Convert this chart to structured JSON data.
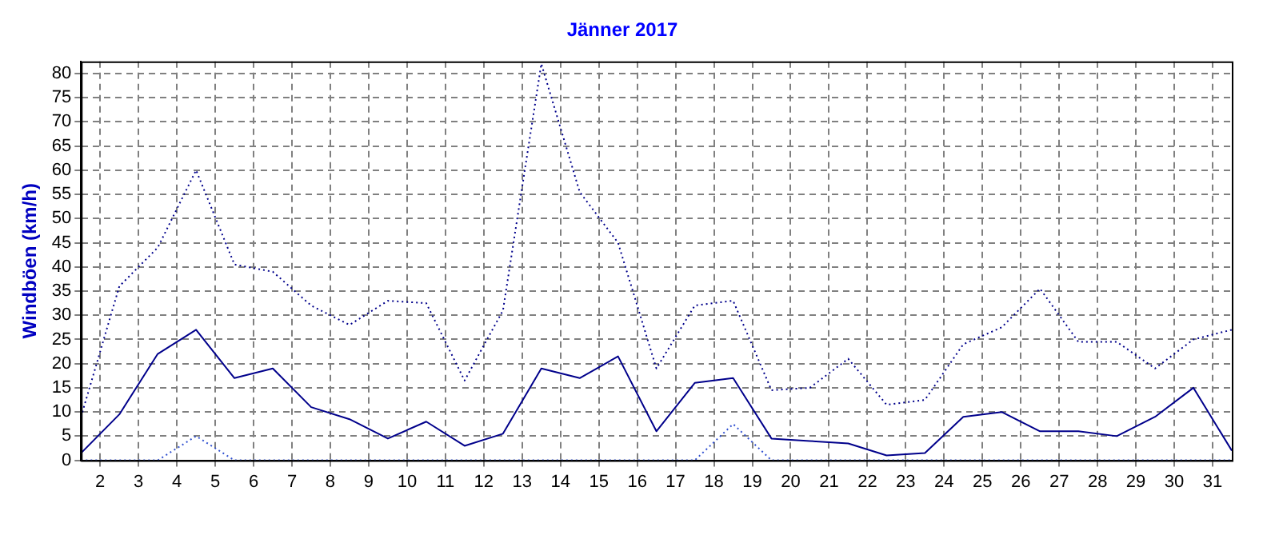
{
  "chart_data": {
    "type": "line",
    "title": "Jänner 2017",
    "ylabel": "Windböen (km/h)",
    "x": [
      1.5,
      2.5,
      3.5,
      4.5,
      5.5,
      6.5,
      7.5,
      8.5,
      9.5,
      10.5,
      11.5,
      12.5,
      13.5,
      14.5,
      15.5,
      16.5,
      17.5,
      18.5,
      19.5,
      20.5,
      21.5,
      22.5,
      23.5,
      24.5,
      25.5,
      26.5,
      27.5,
      28.5,
      29.5,
      30.5,
      31.5
    ],
    "xlim": [
      1.5,
      31.5
    ],
    "xticks": [
      2,
      3,
      4,
      5,
      6,
      7,
      8,
      9,
      10,
      11,
      12,
      13,
      14,
      15,
      16,
      17,
      18,
      19,
      20,
      21,
      22,
      23,
      24,
      25,
      26,
      27,
      28,
      29,
      30,
      31
    ],
    "ylim": [
      0,
      82.5
    ],
    "yticks": [
      0,
      5,
      10,
      15,
      20,
      25,
      30,
      35,
      40,
      45,
      50,
      55,
      60,
      65,
      70,
      75,
      80
    ],
    "grid": true,
    "legend": false,
    "marker": "none",
    "series": [
      {
        "color": "#00008b",
        "line_style": "solid",
        "values": [
          1.5,
          9.5,
          22,
          27,
          17,
          19,
          11,
          8.5,
          4.5,
          8,
          3,
          5.5,
          19,
          17,
          21.5,
          6,
          16,
          17,
          4.5,
          4,
          3.5,
          1,
          1.5,
          9,
          10,
          6,
          6,
          5,
          9,
          15,
          2
        ]
      },
      {
        "color": "#00008b",
        "line_style": "dotted",
        "values": [
          9,
          36,
          44,
          60,
          40.5,
          39,
          32,
          28,
          33,
          32.5,
          16.5,
          31,
          82,
          55.5,
          45,
          19,
          32,
          33,
          14.5,
          15,
          21,
          11.5,
          12.5,
          24,
          27.5,
          35.5,
          24.5,
          24.5,
          19,
          25,
          27
        ]
      },
      {
        "color": "#3050d0",
        "line_style": "dotted",
        "values": [
          0,
          0,
          0,
          5,
          0,
          0,
          0,
          0,
          0,
          0,
          0,
          0,
          0,
          0,
          0,
          0,
          0,
          7.5,
          0,
          0,
          0,
          0,
          0,
          0,
          0,
          0,
          0,
          0,
          0,
          0,
          0
        ]
      }
    ]
  }
}
